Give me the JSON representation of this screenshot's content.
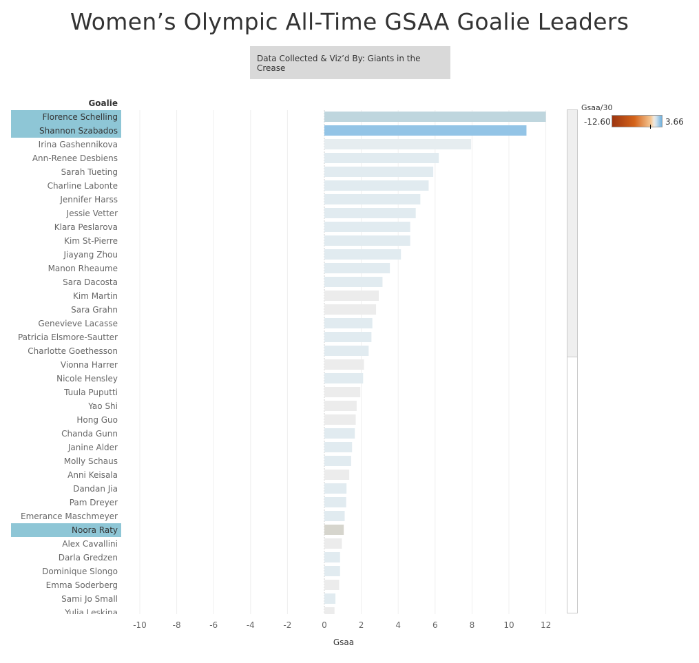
{
  "title": "Women’s Olympic All-Time GSAA Goalie Leaders",
  "credit": "Data Collected & Viz’d By: Giants in the Crease",
  "legend": {
    "title": "Gsaa/30",
    "min": "-12.60",
    "max": "3.66"
  },
  "chart_data": {
    "type": "bar",
    "orientation": "horizontal",
    "row_header": "Goalie",
    "xlabel": "Gsaa",
    "xlim": [
      -11,
      13
    ],
    "xticks": [
      -10,
      -8,
      -6,
      -4,
      -2,
      0,
      2,
      4,
      6,
      8,
      10,
      12
    ],
    "grid": true,
    "color_field": "Gsaa/30",
    "color_range": [
      -12.6,
      3.66
    ],
    "categories": [
      "Florence Schelling",
      "Shannon Szabados",
      "Irina Gashennikova",
      "Ann-Renee Desbiens",
      "Sarah Tueting",
      "Charline Labonte",
      "Jennifer Harss",
      "Jessie Vetter",
      "Klara Peslarova",
      "Kim St-Pierre",
      "Jiayang Zhou",
      "Manon Rheaume",
      "Sara Dacosta",
      "Kim Martin",
      "Sara Grahn",
      "Genevieve Lacasse",
      "Patricia Elsmore-Sautter",
      "Charlotte Goethesson",
      "Vionna Harrer",
      "Nicole Hensley",
      "Tuula Puputti",
      "Yao Shi",
      "Hong Guo",
      "Chanda Gunn",
      "Janine Alder",
      "Molly Schaus",
      "Anni Keisala",
      "Dandan Jia",
      "Pam Dreyer",
      "Emerance Maschmeyer",
      "Noora Raty",
      "Alex Cavallini",
      "Darla Gredzen",
      "Dominique Slongo",
      "Emma Soderberg",
      "Sami Jo Small",
      "Yulia Leskina"
    ],
    "values": [
      12.0,
      10.95,
      7.95,
      6.2,
      5.9,
      5.65,
      5.2,
      4.95,
      4.65,
      4.65,
      4.15,
      3.55,
      3.15,
      2.95,
      2.8,
      2.6,
      2.55,
      2.4,
      2.15,
      2.1,
      1.95,
      1.75,
      1.7,
      1.65,
      1.5,
      1.45,
      1.35,
      1.2,
      1.18,
      1.1,
      1.05,
      0.95,
      0.85,
      0.85,
      0.8,
      0.6,
      0.55
    ],
    "bar_colors": [
      "#bfd6de",
      "#93c4e6",
      "#e6edf0",
      "#e1ebf0",
      "#e1ebf0",
      "#e1ebf0",
      "#e1ebf0",
      "#e1ebf0",
      "#e1ebf0",
      "#e1ebf0",
      "#e1ebf0",
      "#e1ebf0",
      "#e1ebf0",
      "#ececec",
      "#ececec",
      "#e1ebf0",
      "#e1ebf0",
      "#e1ebf0",
      "#ececec",
      "#e1ebf0",
      "#ececec",
      "#ececec",
      "#ececec",
      "#e1ebf0",
      "#e1ebf0",
      "#e1ebf0",
      "#ececec",
      "#e1ebf0",
      "#e1ebf0",
      "#e1ebf0",
      "#d6d5cd",
      "#ececec",
      "#e1ebf0",
      "#e1ebf0",
      "#ececec",
      "#e1ebf0",
      "#ececec"
    ],
    "highlighted": [
      "Florence Schelling",
      "Shannon Szabados",
      "Noora Raty"
    ],
    "highlight_color": "#8ec6d6"
  }
}
